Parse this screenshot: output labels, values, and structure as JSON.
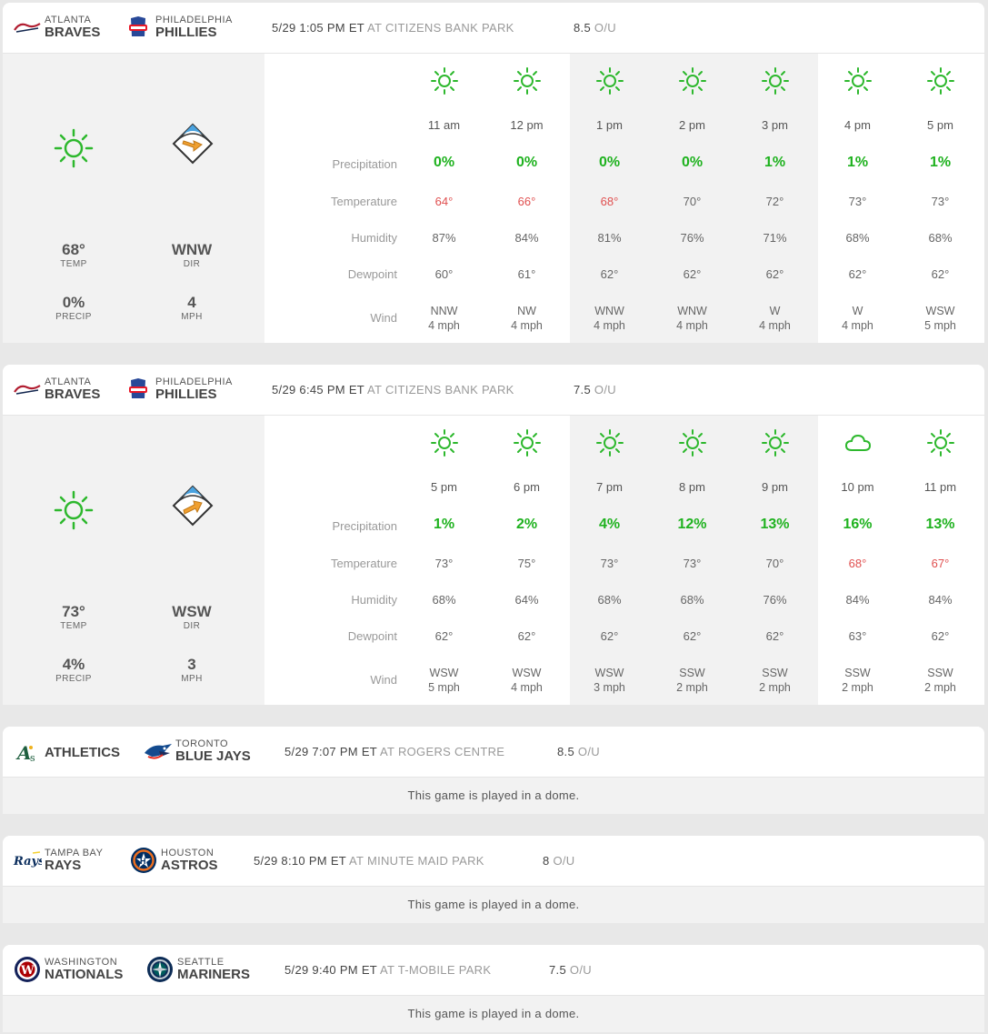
{
  "colors": {
    "precip_green": "#1fb21f",
    "cool_red": "#e05050",
    "sun_green": "#2db82d",
    "wind_orange": "#f0a030"
  },
  "labels": {
    "temp": "TEMP",
    "precip": "PRECIP",
    "dir": "DIR",
    "mph": "MPH",
    "rows": [
      "Precipitation",
      "Temperature",
      "Humidity",
      "Dewpoint",
      "Wind"
    ],
    "ou": "O/U",
    "dome": "This game is played in a dome."
  },
  "games": [
    {
      "away": {
        "city": "ATLANTA",
        "nick": "BRAVES",
        "logo": "braves-logo"
      },
      "home": {
        "city": "PHILADELPHIA",
        "nick": "PHILLIES",
        "logo": "phillies-logo"
      },
      "time": "5/29 1:05 PM ET",
      "park": "AT CITIZENS BANK PARK",
      "ou_value": "8.5",
      "summary": {
        "icon": "sun-icon",
        "temp": "68°",
        "precip": "0%",
        "dir": "WNW",
        "mph": "4"
      },
      "hours": [
        {
          "icon": "sun-icon",
          "time": "11 am",
          "precip": "0%",
          "temp": "64°",
          "cool": true,
          "hum": "87%",
          "dew": "60°",
          "wdir": "NNW",
          "wspd": "4 mph"
        },
        {
          "icon": "sun-icon",
          "time": "12 pm",
          "precip": "0%",
          "temp": "66°",
          "cool": true,
          "hum": "84%",
          "dew": "61°",
          "wdir": "NW",
          "wspd": "4 mph"
        },
        {
          "icon": "sun-icon",
          "time": "1 pm",
          "precip": "0%",
          "temp": "68°",
          "cool": true,
          "hum": "81%",
          "dew": "62°",
          "wdir": "WNW",
          "wspd": "4 mph"
        },
        {
          "icon": "sun-icon",
          "time": "2 pm",
          "precip": "0%",
          "temp": "70°",
          "cool": false,
          "hum": "76%",
          "dew": "62°",
          "wdir": "WNW",
          "wspd": "4 mph"
        },
        {
          "icon": "sun-icon",
          "time": "3 pm",
          "precip": "1%",
          "temp": "72°",
          "cool": false,
          "hum": "71%",
          "dew": "62°",
          "wdir": "W",
          "wspd": "4 mph"
        },
        {
          "icon": "sun-icon",
          "time": "4 pm",
          "precip": "1%",
          "temp": "73°",
          "cool": false,
          "hum": "68%",
          "dew": "62°",
          "wdir": "W",
          "wspd": "4 mph"
        },
        {
          "icon": "sun-icon",
          "time": "5 pm",
          "precip": "1%",
          "temp": "73°",
          "cool": false,
          "hum": "68%",
          "dew": "62°",
          "wdir": "WSW",
          "wspd": "5 mph"
        }
      ]
    },
    {
      "away": {
        "city": "ATLANTA",
        "nick": "BRAVES",
        "logo": "braves-logo"
      },
      "home": {
        "city": "PHILADELPHIA",
        "nick": "PHILLIES",
        "logo": "phillies-logo"
      },
      "time": "5/29 6:45 PM ET",
      "park": "AT CITIZENS BANK PARK",
      "ou_value": "7.5",
      "summary": {
        "icon": "sun-icon",
        "temp": "73°",
        "precip": "4%",
        "dir": "WSW",
        "mph": "3"
      },
      "hours": [
        {
          "icon": "sun-icon",
          "time": "5 pm",
          "precip": "1%",
          "temp": "73°",
          "cool": false,
          "hum": "68%",
          "dew": "62°",
          "wdir": "WSW",
          "wspd": "5 mph"
        },
        {
          "icon": "sun-icon",
          "time": "6 pm",
          "precip": "2%",
          "temp": "75°",
          "cool": false,
          "hum": "64%",
          "dew": "62°",
          "wdir": "WSW",
          "wspd": "4 mph"
        },
        {
          "icon": "sun-icon",
          "time": "7 pm",
          "precip": "4%",
          "temp": "73°",
          "cool": false,
          "hum": "68%",
          "dew": "62°",
          "wdir": "WSW",
          "wspd": "3 mph"
        },
        {
          "icon": "sun-icon",
          "time": "8 pm",
          "precip": "12%",
          "temp": "73°",
          "cool": false,
          "hum": "68%",
          "dew": "62°",
          "wdir": "SSW",
          "wspd": "2 mph"
        },
        {
          "icon": "sun-icon",
          "time": "9 pm",
          "precip": "13%",
          "temp": "70°",
          "cool": false,
          "hum": "76%",
          "dew": "62°",
          "wdir": "SSW",
          "wspd": "2 mph"
        },
        {
          "icon": "cloud-icon",
          "time": "10 pm",
          "precip": "16%",
          "temp": "68°",
          "cool": true,
          "hum": "84%",
          "dew": "63°",
          "wdir": "SSW",
          "wspd": "2 mph"
        },
        {
          "icon": "sun-icon",
          "time": "11 pm",
          "precip": "13%",
          "temp": "67°",
          "cool": true,
          "hum": "84%",
          "dew": "62°",
          "wdir": "SSW",
          "wspd": "2 mph"
        }
      ]
    },
    {
      "away": {
        "nick": "ATHLETICS",
        "logo": "athletics-logo"
      },
      "home": {
        "city": "TORONTO",
        "nick": "BLUE JAYS",
        "logo": "blue-jays-logo"
      },
      "time": "5/29 7:07 PM ET",
      "park": "AT ROGERS CENTRE",
      "ou_value": "8.5"
    },
    {
      "away": {
        "city": "TAMPA BAY",
        "nick": "RAYS",
        "logo": "rays-logo"
      },
      "home": {
        "city": "HOUSTON",
        "nick": "ASTROS",
        "logo": "astros-logo"
      },
      "time": "5/29 8:10 PM ET",
      "park": "AT MINUTE MAID PARK",
      "ou_value": "8"
    },
    {
      "away": {
        "city": "WASHINGTON",
        "nick": "NATIONALS",
        "logo": "nationals-logo"
      },
      "home": {
        "city": "SEATTLE",
        "nick": "MARINERS",
        "logo": "mariners-logo"
      },
      "time": "5/29 9:40 PM ET",
      "park": "AT T-MOBILE PARK",
      "ou_value": "7.5"
    }
  ]
}
